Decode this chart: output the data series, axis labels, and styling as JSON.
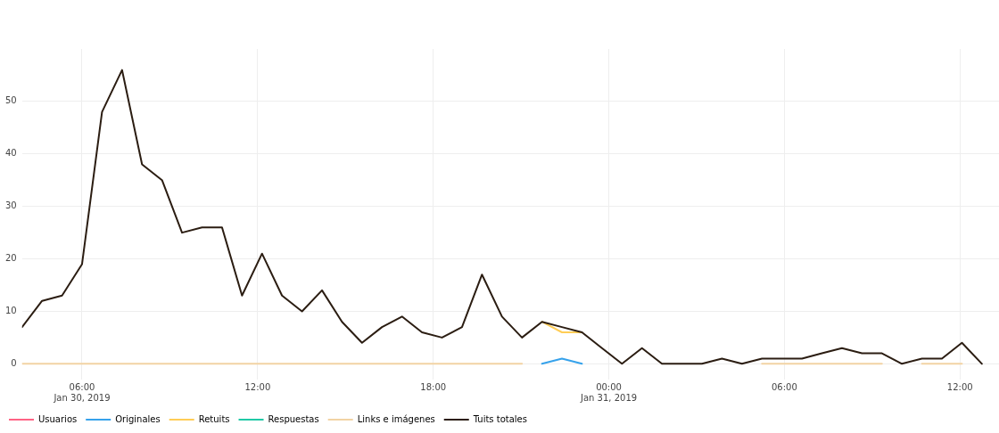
{
  "chart_data": {
    "type": "line",
    "x": [
      "2019-01-30T03:57",
      "2019-01-30T04:38",
      "2019-01-30T05:19",
      "2019-01-30T06:00",
      "2019-01-30T06:41",
      "2019-01-30T07:22",
      "2019-01-30T08:03",
      "2019-01-30T08:44",
      "2019-01-30T09:25",
      "2019-01-30T10:06",
      "2019-01-30T10:47",
      "2019-01-30T11:28",
      "2019-01-30T12:09",
      "2019-01-30T12:50",
      "2019-01-30T13:31",
      "2019-01-30T14:12",
      "2019-01-30T14:53",
      "2019-01-30T15:34",
      "2019-01-30T16:15",
      "2019-01-30T16:56",
      "2019-01-30T17:37",
      "2019-01-30T18:18",
      "2019-01-30T18:59",
      "2019-01-30T19:40",
      "2019-01-30T20:21",
      "2019-01-30T21:02",
      "2019-01-30T21:43",
      "2019-01-30T22:24",
      "2019-01-30T23:05",
      "2019-01-30T23:46",
      "2019-01-31T00:27",
      "2019-01-31T01:08",
      "2019-01-31T01:49",
      "2019-01-31T02:30",
      "2019-01-31T03:11",
      "2019-01-31T03:52",
      "2019-01-31T04:33",
      "2019-01-31T05:14",
      "2019-01-31T05:55",
      "2019-01-31T06:36",
      "2019-01-31T07:17",
      "2019-01-31T07:58",
      "2019-01-31T08:39",
      "2019-01-31T09:20",
      "2019-01-31T10:01",
      "2019-01-31T10:42",
      "2019-01-31T11:23",
      "2019-01-31T12:04",
      "2019-01-31T12:45"
    ],
    "series": [
      {
        "name": "Usuarios",
        "color": "#ff6384",
        "values": [
          null,
          null,
          null,
          null,
          null,
          null,
          null,
          null,
          null,
          null,
          null,
          null,
          null,
          null,
          null,
          null,
          null,
          null,
          null,
          null,
          null,
          null,
          null,
          null,
          null,
          null,
          null,
          null,
          null,
          null,
          null,
          null,
          null,
          null,
          null,
          null,
          null,
          null,
          null,
          null,
          null,
          null,
          null,
          null,
          null,
          null,
          null,
          null,
          null
        ]
      },
      {
        "name": "Originales",
        "color": "#36a2eb",
        "values": [
          null,
          null,
          null,
          null,
          null,
          null,
          null,
          null,
          null,
          null,
          null,
          null,
          null,
          null,
          null,
          null,
          null,
          null,
          null,
          null,
          null,
          null,
          null,
          null,
          null,
          null,
          0,
          1,
          0,
          null,
          null,
          null,
          null,
          null,
          null,
          null,
          null,
          null,
          null,
          null,
          null,
          null,
          null,
          null,
          null,
          null,
          null,
          null,
          null
        ]
      },
      {
        "name": "Retuits",
        "color": "#ffcd56",
        "values": [
          null,
          null,
          null,
          null,
          null,
          null,
          null,
          null,
          null,
          null,
          null,
          null,
          null,
          null,
          null,
          null,
          null,
          null,
          null,
          null,
          null,
          null,
          null,
          null,
          null,
          null,
          8,
          6,
          6,
          null,
          null,
          null,
          null,
          null,
          null,
          null,
          null,
          null,
          null,
          null,
          null,
          null,
          null,
          null,
          null,
          null,
          null,
          null,
          null
        ]
      },
      {
        "name": "Respuestas",
        "color": "#20c9a6",
        "values": [
          null,
          null,
          null,
          null,
          null,
          null,
          null,
          null,
          null,
          null,
          null,
          null,
          null,
          null,
          null,
          null,
          null,
          null,
          null,
          null,
          null,
          null,
          null,
          null,
          null,
          null,
          null,
          null,
          null,
          null,
          null,
          null,
          null,
          null,
          null,
          null,
          null,
          null,
          null,
          null,
          null,
          null,
          null,
          null,
          null,
          null,
          null,
          null,
          null
        ]
      },
      {
        "name": "Links e imágenes",
        "color": "#f2d3a4",
        "values": [
          0,
          0,
          0,
          0,
          0,
          0,
          0,
          0,
          0,
          0,
          0,
          0,
          0,
          0,
          0,
          0,
          0,
          0,
          0,
          0,
          0,
          0,
          0,
          0,
          0,
          0,
          null,
          null,
          null,
          null,
          null,
          null,
          null,
          null,
          null,
          null,
          null,
          0,
          0,
          0,
          0,
          0,
          0,
          0,
          null,
          0,
          0,
          0,
          null
        ]
      },
      {
        "name": "Tuits totales",
        "color": "#2b1d12",
        "values": [
          7,
          12,
          13,
          19,
          48,
          56,
          38,
          35,
          25,
          26,
          26,
          13,
          21,
          13,
          10,
          14,
          8,
          4,
          7,
          9,
          6,
          5,
          7,
          17,
          9,
          5,
          8,
          7,
          6,
          3,
          0,
          3,
          0,
          0,
          0,
          1,
          0,
          1,
          1,
          1,
          2,
          3,
          2,
          2,
          0,
          1,
          1,
          4,
          0
        ]
      }
    ],
    "xlim": [
      "2019-01-30T03:57",
      "2019-01-31T13:20"
    ],
    "xticks": [
      {
        "value": "2019-01-30T06:00",
        "label": "06:00\nJan 30, 2019"
      },
      {
        "value": "2019-01-30T12:00",
        "label": "12:00"
      },
      {
        "value": "2019-01-30T18:00",
        "label": "18:00"
      },
      {
        "value": "2019-01-31T00:00",
        "label": "00:00\nJan 31, 2019"
      },
      {
        "value": "2019-01-31T06:00",
        "label": "06:00"
      },
      {
        "value": "2019-01-31T12:00",
        "label": "12:00"
      }
    ],
    "ylim": [
      -3,
      60
    ],
    "yticks": [
      0,
      10,
      20,
      30,
      40,
      50
    ],
    "grid": true,
    "legend": "bottom left",
    "marker": "none",
    "line_style": "solid"
  }
}
